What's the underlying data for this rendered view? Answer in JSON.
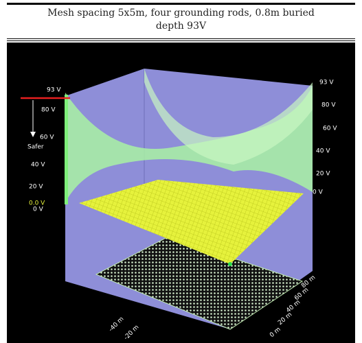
{
  "caption": "Mesh spacing 5x5m, four grounding rods, 0.8m buried depth 93V",
  "figure": {
    "left_axis_labels": [
      "93 V",
      "80 V",
      "60 V",
      "40 V",
      "20 V",
      "0.0 V",
      "0 V"
    ],
    "safety_label": "Safer",
    "right_axis_labels": [
      "93 V",
      "80 V",
      "60 V",
      "40 V",
      "20 V",
      "0 V"
    ],
    "bottom_left_labels": [
      "-40 m",
      "-20 m"
    ],
    "bottom_right_labels": [
      "80 m",
      "60 m",
      "40 m",
      "20 m",
      "0 m"
    ]
  }
}
